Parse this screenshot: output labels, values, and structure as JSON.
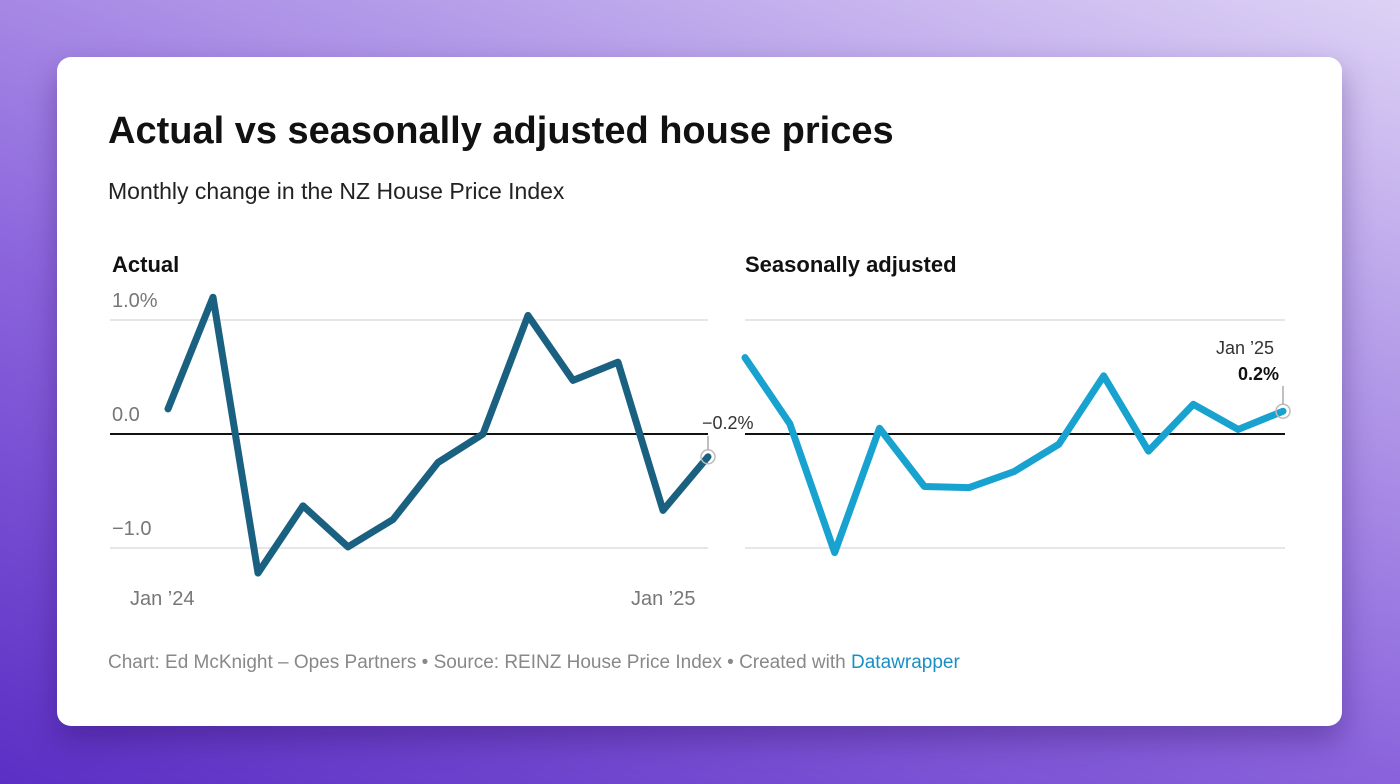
{
  "title": "Actual vs seasonally adjusted house prices",
  "subtitle": "Monthly change in the NZ House Price Index",
  "footer": {
    "text": "Chart: Ed McKnight – Opes Partners • Source: REINZ House Price Index • Created with ",
    "link": "Datawrapper"
  },
  "colors": {
    "actual": "#1a6080",
    "seasonal": "#18a2cf",
    "zero_line": "#111111",
    "grid": "#e6e6e6"
  },
  "chart_data": [
    {
      "type": "line",
      "title": "Actual",
      "x": [
        "Jan 2024",
        "Feb 2024",
        "Mar 2024",
        "Apr 2024",
        "May 2024",
        "Jun 2024",
        "Jul 2024",
        "Aug 2024",
        "Sep 2024",
        "Oct 2024",
        "Nov 2024",
        "Dec 2024",
        "Jan 2025"
      ],
      "values": [
        0.22,
        1.2,
        -1.22,
        -0.63,
        -0.99,
        -0.75,
        -0.25,
        0.0,
        1.04,
        0.47,
        0.63,
        -0.67,
        -0.2
      ],
      "ylim": [
        -1.0,
        1.0
      ],
      "y_ticks": [
        "1.0%",
        "0.0",
        "−1.0"
      ],
      "x_ticks": [
        "Jan ’24",
        "Jan ’25"
      ],
      "annotation": "−0.2%"
    },
    {
      "type": "line",
      "title": "Seasonally adjusted",
      "x": [
        "Jan 2024",
        "Feb 2024",
        "Mar 2024",
        "Apr 2024",
        "May 2024",
        "Jun 2024",
        "Jul 2024",
        "Aug 2024",
        "Sep 2024",
        "Oct 2024",
        "Nov 2024",
        "Dec 2024",
        "Jan 2025"
      ],
      "values": [
        0.67,
        0.09,
        -1.04,
        0.05,
        -0.46,
        -0.47,
        -0.33,
        -0.09,
        0.51,
        -0.15,
        0.26,
        0.04,
        0.2
      ],
      "ylim": [
        -1.0,
        1.0
      ],
      "annotation_date": "Jan ’25",
      "annotation": "0.2%"
    }
  ]
}
